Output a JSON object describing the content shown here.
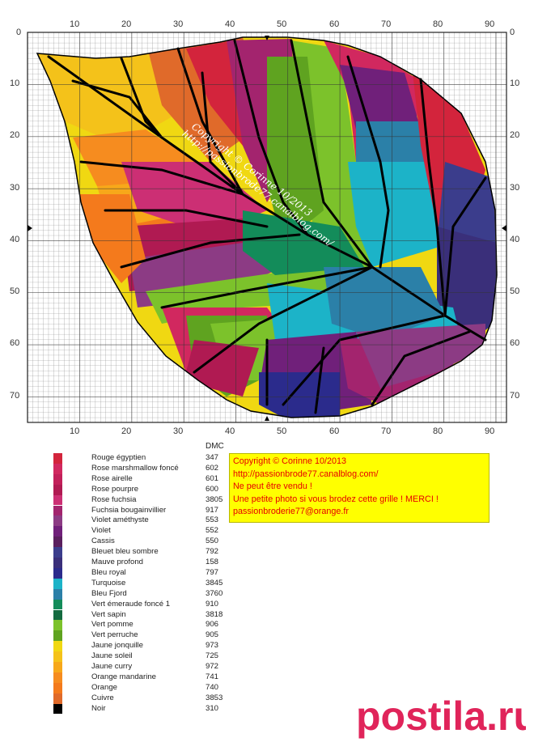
{
  "grid": {
    "x_ticks": [
      "0",
      "10",
      "20",
      "30",
      "40",
      "50",
      "60",
      "70",
      "80",
      "90"
    ],
    "y_ticks": [
      "0",
      "10",
      "20",
      "30",
      "40",
      "50",
      "60",
      "70"
    ],
    "watermark_line1": "Copyright © Corinne 10/2013",
    "watermark_line2": "http://passionbrode77.canalblog.com/"
  },
  "legend": {
    "header": "DMC",
    "items": [
      {
        "name": "Rouge égyptien",
        "code": "347",
        "color": "#d3243c"
      },
      {
        "name": "Rose marshmallow foncé",
        "code": "602",
        "color": "#d1285f"
      },
      {
        "name": "Rose airelle",
        "code": "601",
        "color": "#c2205a"
      },
      {
        "name": "Rose pourpre",
        "code": "600",
        "color": "#b01a52"
      },
      {
        "name": "Rose fuchsia",
        "code": "3805",
        "color": "#cc2f74"
      },
      {
        "name": "Fuchsia bougainvillier",
        "code": "917",
        "color": "#a3246e"
      },
      {
        "name": "Violet améthyste",
        "code": "553",
        "color": "#8c3b84"
      },
      {
        "name": "Violet",
        "code": "552",
        "color": "#70207a"
      },
      {
        "name": "Cassis",
        "code": "550",
        "color": "#5a1f5e"
      },
      {
        "name": "Bleuet bleu sombre",
        "code": "792",
        "color": "#3b3d8c"
      },
      {
        "name": "Mauve profond",
        "code": "158",
        "color": "#3a2f7a"
      },
      {
        "name": "Bleu royal",
        "code": "797",
        "color": "#2b2b8c"
      },
      {
        "name": "Turquoise",
        "code": "3845",
        "color": "#1cb3c8"
      },
      {
        "name": "Bleu Fjord",
        "code": "3760",
        "color": "#2b80a8"
      },
      {
        "name": "Vert émeraude foncé 1",
        "code": "910",
        "color": "#138c5a"
      },
      {
        "name": "Vert sapin",
        "code": "3818",
        "color": "#146b40"
      },
      {
        "name": "Vert pomme",
        "code": "906",
        "color": "#7cc22b"
      },
      {
        "name": "Vert perruche",
        "code": "905",
        "color": "#5fa320"
      },
      {
        "name": "Jaune jonquille",
        "code": "973",
        "color": "#f0d812"
      },
      {
        "name": "Jaune soleil",
        "code": "725",
        "color": "#f5c21a"
      },
      {
        "name": "Jaune curry",
        "code": "972",
        "color": "#f7a81a"
      },
      {
        "name": "Orange mandarine",
        "code": "741",
        "color": "#f68c1f"
      },
      {
        "name": "Orange",
        "code": "740",
        "color": "#f47a1c"
      },
      {
        "name": "Cuivre",
        "code": "3853",
        "color": "#e06a2a"
      },
      {
        "name": "Noir",
        "code": "310",
        "color": "#000000"
      }
    ]
  },
  "copyright_box": {
    "lines": [
      "Copyright © Corinne 10/2013",
      "http://passionbrode77.canalblog.com/",
      "Ne peut être vendu !",
      "Une petite photo si vous brodez cette grille ! MERCI !",
      "passionbroderie77@orange.fr"
    ]
  },
  "logo": {
    "text": "postila.ru"
  }
}
